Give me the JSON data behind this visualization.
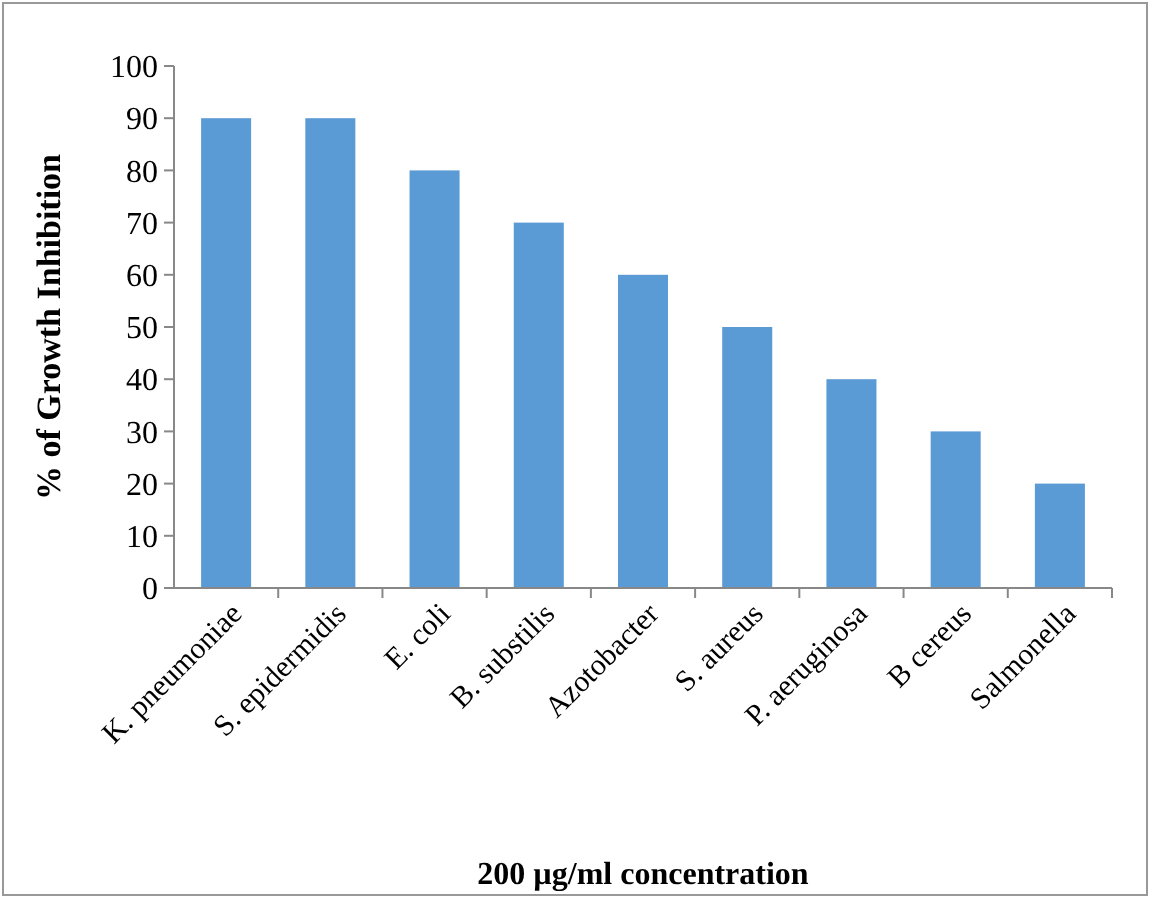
{
  "chart_data": {
    "type": "bar",
    "xlabel": "200 µg/ml concentration",
    "ylabel": "% of Growth Inhibition",
    "categories": [
      "K. pneumoniae",
      "S. epidermidis",
      "E. coli",
      "B. substilis",
      "Azotobacter",
      "S. aureus",
      "P. aeruginosa",
      "B cereus",
      "Salmonella"
    ],
    "values": [
      90,
      90,
      80,
      70,
      60,
      50,
      40,
      30,
      20
    ],
    "color": "#5b9bd5",
    "ylim": [
      0,
      100
    ],
    "yticks": [
      0,
      10,
      20,
      30,
      40,
      50,
      60,
      70,
      80,
      90,
      100
    ],
    "grid": false
  }
}
